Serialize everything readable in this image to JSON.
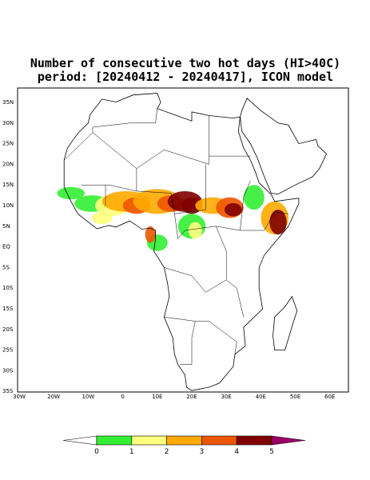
{
  "title": [
    "Number of consecutive two hot days (HI>40C)",
    "period: [20240412 - 20240417], ICON model"
  ],
  "map": {
    "lat_labels": [
      "35N",
      "30N",
      "25N",
      "20N",
      "15N",
      "10N",
      "5N",
      "EQ",
      "5S",
      "10S",
      "15S",
      "20S",
      "25S",
      "30S",
      "35S"
    ],
    "lon_labels": [
      "30W",
      "20W",
      "10W",
      "0",
      "10E",
      "20E",
      "30E",
      "40E",
      "50E",
      "60E"
    ]
  },
  "colorbar": {
    "labels": [
      0,
      1,
      2,
      3,
      4,
      5
    ],
    "colors": [
      "#ffffff",
      "#33ee33",
      "#ffff80",
      "#ffaa00",
      "#ee5500",
      "#800000",
      "#990066"
    ]
  }
}
